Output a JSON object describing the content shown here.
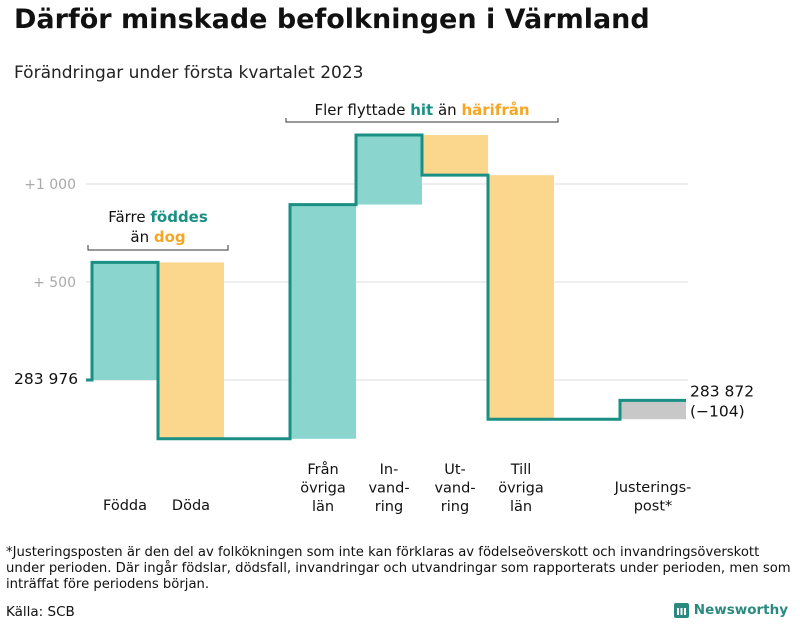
{
  "title": "Därför minskade befolkningen i Värmland",
  "subtitle": "Förändringar under första kvartalet 2023",
  "footnote": "*Justeringsposten är den del av folkökningen som inte kan förklaras av födelseöverskott och invandringsöverskott under perioden. Där ingår födslar, dödsfall, invandringar och utvandringar som rapporterats under perioden, men som inträffat före periodens början.",
  "source": "Källa: SCB",
  "brand": "Newsworthy",
  "colors": {
    "teal": "#8ad5cd",
    "teal_line": "#1a8f84",
    "orange": "#fbd68d",
    "orange_text": "#f5a623",
    "gray": "#c8c8c8",
    "grid": "#dddddd"
  },
  "chart_data": {
    "type": "waterfall",
    "baseline": 283976,
    "start_label": "283 976",
    "end_label": [
      "283 872",
      "(−104)"
    ],
    "y_ticks": [
      {
        "value": 1000,
        "label": "+1 000"
      },
      {
        "value": 500,
        "label": "+ 500"
      }
    ],
    "ylim": [
      -310,
      1260
    ],
    "steps": [
      {
        "label": [
          "Födda"
        ],
        "delta": 600,
        "kind": "teal"
      },
      {
        "label": [
          "Döda"
        ],
        "delta": -900,
        "kind": "orange"
      },
      {
        "label": [
          "Från",
          "övriga",
          "län"
        ],
        "delta": 1195,
        "kind": "teal"
      },
      {
        "label": [
          "In-",
          "vand-",
          "ring"
        ],
        "delta": 355,
        "kind": "teal"
      },
      {
        "label": [
          "Ut-",
          "vand-",
          "ring"
        ],
        "delta": -205,
        "kind": "orange"
      },
      {
        "label": [
          "Till",
          "övriga",
          "län"
        ],
        "delta": -1245,
        "kind": "orange"
      },
      {
        "label": [
          "Justerings-",
          "post*"
        ],
        "delta": 96,
        "kind": "gray"
      }
    ],
    "annotations": [
      {
        "parts": [
          [
            "Färre ",
            "plain"
          ],
          [
            "föddes",
            "teal"
          ]
        ],
        "parts2": [
          [
            "än ",
            "plain"
          ],
          [
            "dog",
            "orange"
          ]
        ],
        "span": [
          0,
          1
        ]
      },
      {
        "parts": [
          [
            "Fler flyttade ",
            "plain"
          ],
          [
            "hit",
            "teal"
          ],
          [
            " än ",
            "plain"
          ],
          [
            "härifrån",
            "orange"
          ]
        ],
        "span": [
          2,
          5
        ]
      }
    ]
  }
}
